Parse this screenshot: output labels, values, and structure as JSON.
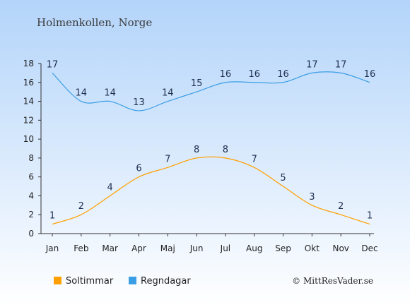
{
  "chart_data": {
    "type": "line",
    "title": "Holmenkollen, Norge",
    "categories": [
      "Jan",
      "Feb",
      "Mar",
      "Apr",
      "Maj",
      "Jun",
      "Jul",
      "Aug",
      "Sep",
      "Okt",
      "Nov",
      "Dec"
    ],
    "ylim": [
      0,
      18
    ],
    "yticks": [
      0,
      2,
      4,
      6,
      8,
      10,
      12,
      14,
      16,
      18
    ],
    "series": [
      {
        "name": "Soltimmar",
        "color": "#ffa000",
        "values": [
          1,
          2,
          4,
          6,
          7,
          8,
          8,
          7,
          5,
          3,
          2,
          1
        ]
      },
      {
        "name": "Regndagar",
        "color": "#3a9ee6",
        "values": [
          17,
          14,
          14,
          13,
          14,
          15,
          16,
          16,
          16,
          17,
          17,
          16
        ]
      }
    ],
    "legend": "bottom-left",
    "grid": false
  },
  "credit": "© MittResVader.se"
}
